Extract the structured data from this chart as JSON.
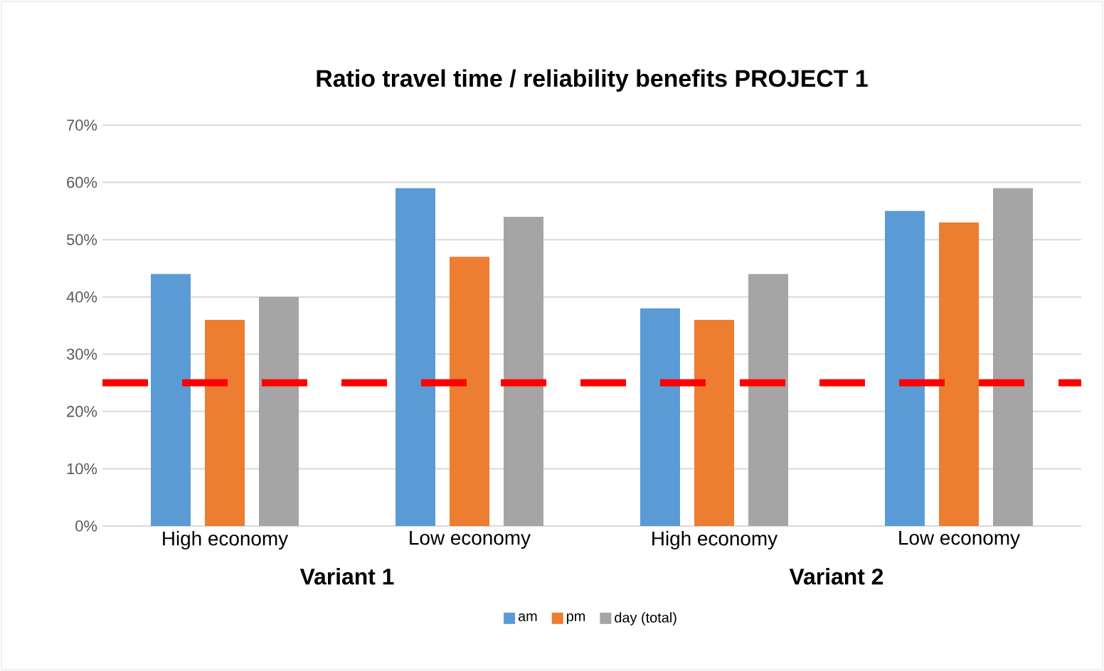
{
  "chart_data": {
    "type": "bar",
    "title": "Ratio travel time / reliability benefits   PROJECT 1",
    "categories": [
      "High economy",
      "Low economy",
      "High economy",
      "Low economy"
    ],
    "series": [
      {
        "name": "am",
        "color": "#5b9bd5",
        "values": [
          44,
          59,
          38,
          55
        ]
      },
      {
        "name": "pm",
        "color": "#ed7d31",
        "values": [
          36,
          47,
          36,
          53
        ]
      },
      {
        "name": "day (total)",
        "color": "#a5a5a5",
        "values": [
          40,
          54,
          44,
          59
        ]
      }
    ],
    "ylim": [
      0,
      70
    ],
    "yticks": [
      {
        "value": 0,
        "label": "0%"
      },
      {
        "value": 10,
        "label": "10%"
      },
      {
        "value": 20,
        "label": "20%"
      },
      {
        "value": 30,
        "label": "30%"
      },
      {
        "value": 40,
        "label": "40%"
      },
      {
        "value": 50,
        "label": "50%"
      },
      {
        "value": 60,
        "label": "60%"
      },
      {
        "value": 70,
        "label": "70%"
      }
    ],
    "ref_lines": [
      {
        "axis": "y",
        "value": 25,
        "color": "#ff0000",
        "line_style": "dashed"
      }
    ],
    "annotations": [
      "Variant 1",
      "Variant 2"
    ],
    "grid": "y",
    "legend": "bottom"
  }
}
